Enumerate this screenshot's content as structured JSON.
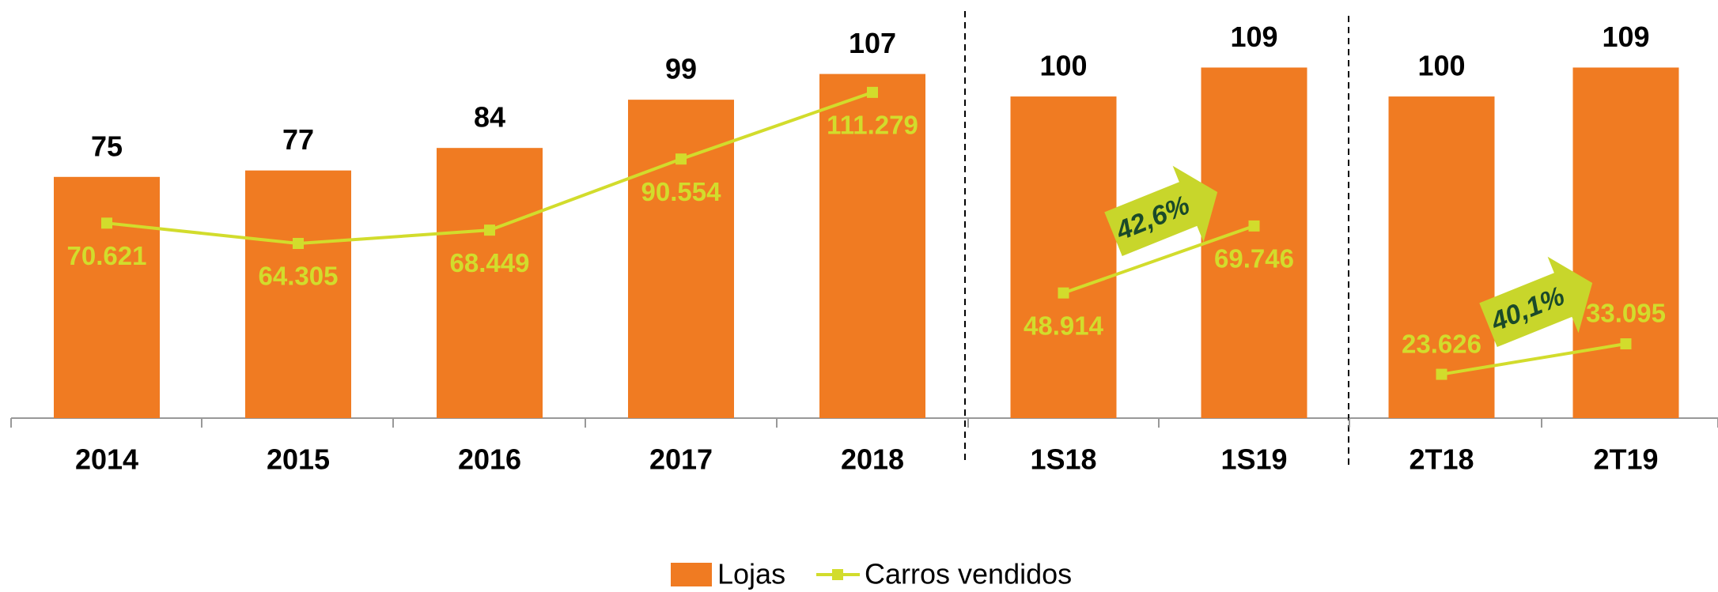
{
  "chart_data": [
    {
      "type": "bar",
      "categories": [
        "2014",
        "2015",
        "2016",
        "2017",
        "2018"
      ],
      "ylim": [
        0,
        130
      ],
      "y2lim": [
        10000,
        140000
      ],
      "series": [
        {
          "name": "Lojas",
          "color": "#f07b22",
          "values": [
            75,
            77,
            84,
            99,
            107
          ]
        },
        {
          "name": "Carros vendidos",
          "color": "#d2dc2c",
          "axis": "y2",
          "values": [
            70621,
            64305,
            68449,
            90554,
            111279
          ],
          "value_labels": [
            "70.621",
            "64.305",
            "68.449",
            "90.554",
            "111.279"
          ]
        }
      ]
    },
    {
      "type": "bar",
      "categories": [
        "1S18",
        "1S19"
      ],
      "ylim": [
        0,
        130
      ],
      "y2lim": [
        10000,
        140000
      ],
      "annotation": "42,6%",
      "series": [
        {
          "name": "Lojas",
          "color": "#f07b22",
          "values": [
            100,
            109
          ]
        },
        {
          "name": "Carros vendidos",
          "color": "#d2dc2c",
          "axis": "y2",
          "values": [
            48914,
            69746
          ],
          "value_labels": [
            "48.914",
            "69.746"
          ]
        }
      ]
    },
    {
      "type": "bar",
      "categories": [
        "2T18",
        "2T19"
      ],
      "ylim": [
        0,
        130
      ],
      "y2lim": [
        10000,
        140000
      ],
      "annotation": "40,1%",
      "series": [
        {
          "name": "Lojas",
          "color": "#f07b22",
          "values": [
            100,
            109
          ]
        },
        {
          "name": "Carros vendidos",
          "color": "#d2dc2c",
          "axis": "y2",
          "values": [
            23626,
            33095
          ],
          "value_labels": [
            "23.626",
            "33.095"
          ]
        }
      ]
    }
  ]
}
